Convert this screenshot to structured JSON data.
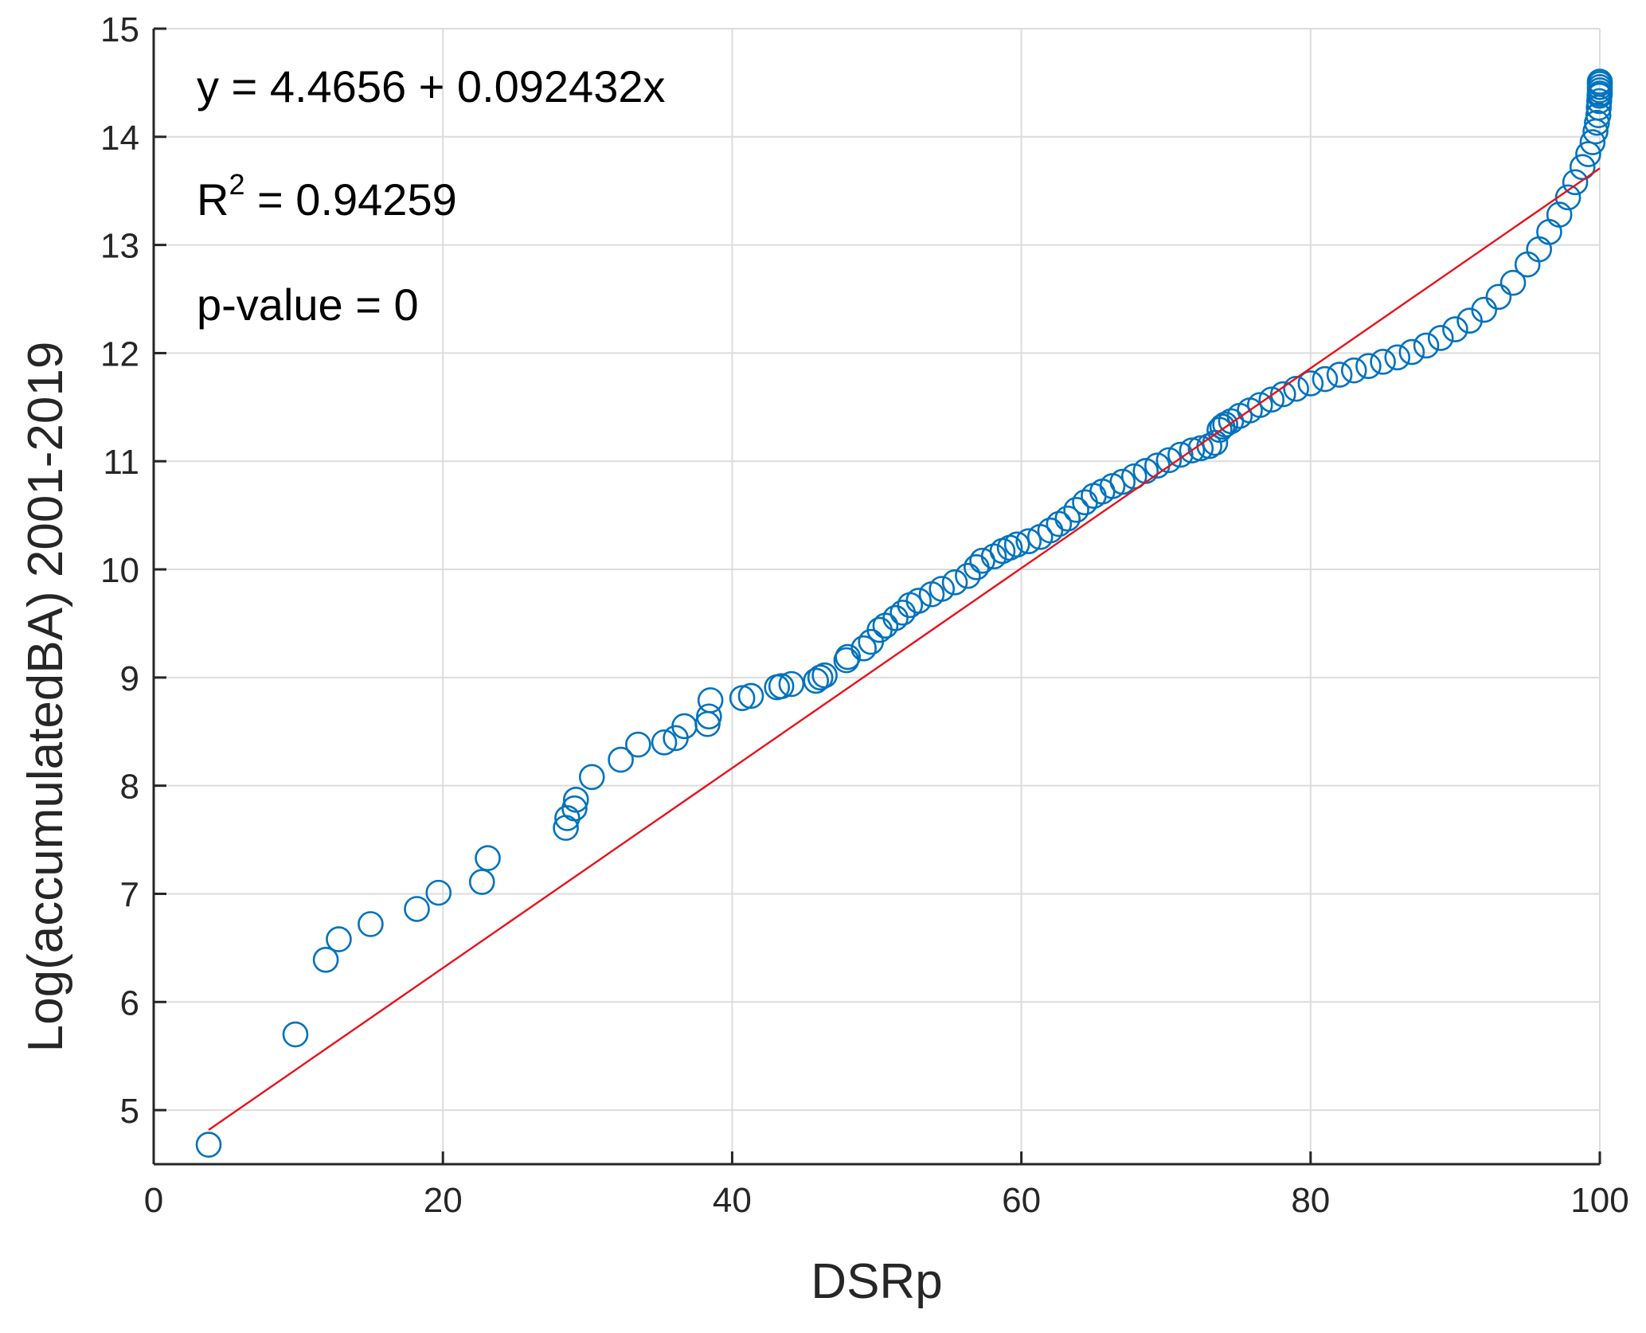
{
  "chart_data": {
    "type": "scatter",
    "xlabel": "DSRp",
    "ylabel": "Log(accumulatedBA) 2001-2019",
    "xlim": [
      0,
      100
    ],
    "ylim": [
      4.5,
      15
    ],
    "xticks": [
      "0",
      "20",
      "40",
      "60",
      "80",
      "100"
    ],
    "xtick_values": [
      0,
      20,
      40,
      60,
      80,
      100
    ],
    "yticks": [
      "5",
      "6",
      "7",
      "8",
      "9",
      "10",
      "11",
      "12",
      "13",
      "14",
      "15"
    ],
    "ytick_values": [
      5,
      6,
      7,
      8,
      9,
      10,
      11,
      12,
      13,
      14,
      15
    ],
    "grid": true,
    "colors": {
      "points": "#0072BD",
      "fit_line": "#E8111B",
      "grid": "#DCDCDC",
      "axis": "#262626"
    },
    "annotations": {
      "equation": "y = 4.4656 + 0.092432x",
      "r2_prefix": "R",
      "r2_sup": "2",
      "r2_value": " = 0.94259",
      "pvalue": "p-value = 0"
    },
    "fit_line": {
      "intercept": 4.4656,
      "slope": 0.092432,
      "x_range": [
        3.8,
        100
      ]
    },
    "series": [
      {
        "marker": "open-circle",
        "x": [
          3.8,
          9.8,
          11.9,
          12.8,
          15.0,
          18.2,
          19.7,
          22.7,
          23.1,
          28.5,
          28.6,
          29.1,
          29.2,
          30.3,
          32.3,
          33.5,
          35.3,
          36.1,
          36.7,
          38.3,
          38.4,
          38.5,
          40.7,
          41.3,
          43.1,
          43.4,
          44.1,
          45.8,
          46.1,
          46.4,
          47.9,
          48.0,
          49.1,
          49.6,
          50.2,
          50.6,
          51.3,
          51.8,
          52.3,
          52.9,
          53.8,
          54.5,
          55.4,
          56.3,
          56.9,
          57.3,
          58.1,
          58.7,
          59.2,
          59.7,
          60.5,
          61.3,
          62.0,
          62.6,
          63.2,
          63.8,
          64.4,
          65.0,
          65.6,
          66.3,
          67.0,
          67.8,
          68.6,
          69.4,
          70.2,
          71.0,
          71.8,
          72.4,
          73.0,
          73.4,
          73.7,
          73.9,
          74.1,
          74.5,
          75.1,
          75.8,
          76.5,
          77.3,
          78.1,
          79.0,
          80.0,
          81.0,
          82.0,
          83.0,
          84.0,
          85.0,
          86.0,
          87.0,
          88.0,
          89.0,
          90.0,
          91.0,
          92.0,
          93.0,
          94.0,
          95.0,
          95.8,
          96.5,
          97.2,
          97.8,
          98.3,
          98.8,
          99.2,
          99.5,
          99.7,
          99.8,
          99.9,
          99.93,
          99.96,
          99.98,
          100.0,
          100.0,
          100.0,
          100.0,
          100.0
        ],
        "y": [
          4.68,
          5.7,
          6.39,
          6.58,
          6.72,
          6.86,
          7.01,
          7.11,
          7.33,
          7.61,
          7.7,
          7.79,
          7.87,
          8.08,
          8.24,
          8.38,
          8.4,
          8.44,
          8.55,
          8.57,
          8.64,
          8.79,
          8.81,
          8.83,
          8.91,
          8.92,
          8.94,
          8.97,
          9.0,
          9.02,
          9.16,
          9.19,
          9.27,
          9.33,
          9.44,
          9.48,
          9.55,
          9.6,
          9.67,
          9.71,
          9.77,
          9.82,
          9.88,
          9.94,
          10.02,
          10.08,
          10.12,
          10.17,
          10.2,
          10.23,
          10.26,
          10.3,
          10.36,
          10.42,
          10.47,
          10.55,
          10.62,
          10.68,
          10.72,
          10.77,
          10.81,
          10.86,
          10.91,
          10.96,
          11.01,
          11.06,
          11.1,
          11.12,
          11.14,
          11.17,
          11.29,
          11.32,
          11.34,
          11.37,
          11.42,
          11.47,
          11.52,
          11.57,
          11.62,
          11.67,
          11.72,
          11.76,
          11.8,
          11.84,
          11.88,
          11.92,
          11.96,
          12.01,
          12.07,
          12.14,
          12.22,
          12.3,
          12.4,
          12.52,
          12.65,
          12.82,
          12.96,
          13.12,
          13.28,
          13.44,
          13.58,
          13.72,
          13.84,
          13.95,
          14.05,
          14.13,
          14.2,
          14.27,
          14.33,
          14.38,
          14.4,
          14.43,
          14.46,
          14.49,
          14.51
        ]
      }
    ]
  }
}
